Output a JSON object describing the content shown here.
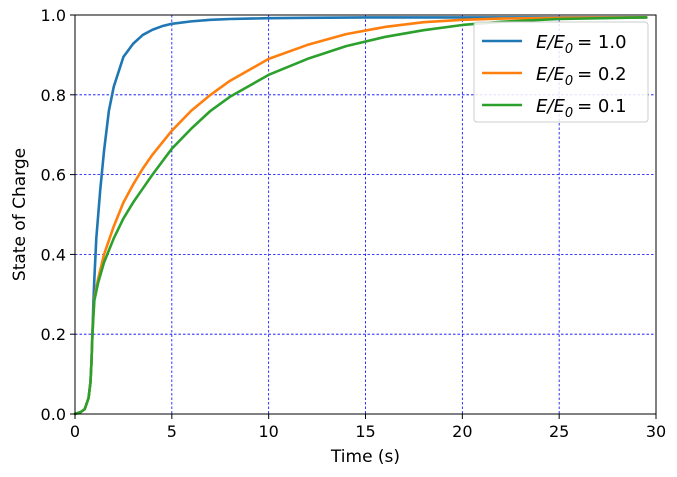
{
  "chart_data": {
    "type": "line",
    "title": "",
    "xlabel": "Time (s)",
    "ylabel": "State of Charge",
    "xlim": [
      0,
      30
    ],
    "ylim": [
      0,
      1.0
    ],
    "xticks": [
      0,
      5,
      10,
      15,
      20,
      25,
      30
    ],
    "yticks": [
      0.0,
      0.2,
      0.4,
      0.6,
      0.8,
      1.0
    ],
    "xtick_labels": [
      "0",
      "5",
      "10",
      "15",
      "20",
      "25",
      "30"
    ],
    "ytick_labels": [
      "0.0",
      "0.2",
      "0.4",
      "0.6",
      "0.8",
      "1.0"
    ],
    "grid": true,
    "grid_color": "#0000ff",
    "legend_position": "top-right",
    "series": [
      {
        "name": "E/E0 = 1.0",
        "legend_var": "E/E",
        "legend_sub": "0",
        "legend_value": "= 1.0",
        "color": "#1f77b4",
        "x": [
          0,
          0.3,
          0.5,
          0.7,
          0.8,
          0.85,
          0.9,
          0.95,
          1.0,
          1.1,
          1.2,
          1.3,
          1.5,
          1.75,
          2.0,
          2.5,
          3.0,
          3.5,
          4.0,
          4.5,
          5.0,
          6.0,
          7.0,
          8.0,
          9.0,
          10.0,
          12.0,
          15.0,
          20.0,
          25.0,
          29.5
        ],
        "y": [
          0,
          0.005,
          0.012,
          0.04,
          0.08,
          0.13,
          0.2,
          0.28,
          0.34,
          0.44,
          0.5,
          0.56,
          0.66,
          0.76,
          0.82,
          0.895,
          0.928,
          0.95,
          0.963,
          0.972,
          0.978,
          0.984,
          0.988,
          0.99,
          0.991,
          0.992,
          0.993,
          0.994,
          0.994,
          0.994,
          0.994
        ]
      },
      {
        "name": "E/E0 = 0.2",
        "legend_var": "E/E",
        "legend_sub": "0",
        "legend_value": "= 0.2",
        "color": "#ff7f0e",
        "x": [
          0,
          0.3,
          0.5,
          0.7,
          0.8,
          0.85,
          0.9,
          0.95,
          1.0,
          1.2,
          1.5,
          2.0,
          2.5,
          3.0,
          3.5,
          4.0,
          5.0,
          6.0,
          7.0,
          8.0,
          10.0,
          12.0,
          14.0,
          16.0,
          18.0,
          20.0,
          22.0,
          25.0,
          29.5
        ],
        "y": [
          0,
          0.005,
          0.012,
          0.04,
          0.08,
          0.13,
          0.2,
          0.25,
          0.29,
          0.34,
          0.4,
          0.47,
          0.53,
          0.575,
          0.615,
          0.65,
          0.71,
          0.76,
          0.8,
          0.835,
          0.89,
          0.925,
          0.952,
          0.97,
          0.982,
          0.988,
          0.991,
          0.993,
          0.994
        ]
      },
      {
        "name": "E/E0 = 0.1",
        "legend_var": "E/E",
        "legend_sub": "0",
        "legend_value": "= 0.1",
        "color": "#2ca02c",
        "x": [
          0,
          0.3,
          0.5,
          0.7,
          0.8,
          0.85,
          0.9,
          0.95,
          1.0,
          1.2,
          1.5,
          2.0,
          2.5,
          3.0,
          3.5,
          4.0,
          5.0,
          6.0,
          7.0,
          8.0,
          10.0,
          12.0,
          14.0,
          16.0,
          18.0,
          20.0,
          22.0,
          25.0,
          29.5
        ],
        "y": [
          0,
          0.005,
          0.012,
          0.04,
          0.08,
          0.13,
          0.2,
          0.245,
          0.285,
          0.33,
          0.38,
          0.44,
          0.49,
          0.53,
          0.565,
          0.6,
          0.665,
          0.715,
          0.76,
          0.795,
          0.85,
          0.89,
          0.922,
          0.945,
          0.962,
          0.975,
          0.983,
          0.99,
          0.994
        ]
      }
    ]
  }
}
